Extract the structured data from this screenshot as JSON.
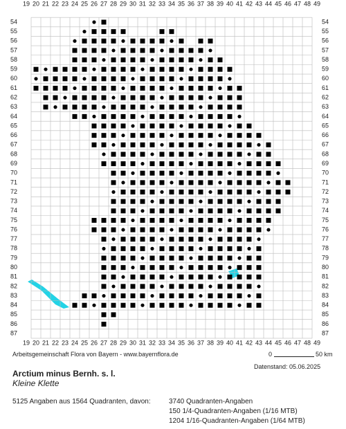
{
  "map": {
    "columns": [
      19,
      20,
      21,
      22,
      23,
      24,
      25,
      26,
      27,
      28,
      29,
      30,
      31,
      32,
      33,
      34,
      35,
      36,
      37,
      38,
      39,
      40,
      41,
      42,
      43,
      44,
      45,
      46,
      47,
      48,
      49
    ],
    "rows": [
      54,
      55,
      56,
      57,
      58,
      59,
      60,
      61,
      62,
      63,
      64,
      65,
      66,
      67,
      68,
      69,
      70,
      71,
      72,
      73,
      74,
      75,
      76,
      77,
      78,
      79,
      80,
      81,
      82,
      83,
      84,
      85,
      86,
      87
    ],
    "cells": [
      [
        54,
        26,
        27
      ],
      [
        55,
        25,
        29
      ],
      [
        55,
        33,
        34
      ],
      [
        56,
        24,
        35
      ],
      [
        56,
        37,
        38
      ],
      [
        57,
        24,
        38
      ],
      [
        58,
        24,
        39
      ],
      [
        59,
        20,
        40
      ],
      [
        60,
        20,
        40
      ],
      [
        61,
        20,
        41
      ],
      [
        62,
        21,
        41
      ],
      [
        63,
        21,
        41
      ],
      [
        64,
        24,
        41
      ],
      [
        65,
        26,
        42
      ],
      [
        66,
        26,
        43
      ],
      [
        67,
        26,
        44
      ],
      [
        68,
        27,
        44
      ],
      [
        69,
        27,
        45
      ],
      [
        70,
        28,
        45
      ],
      [
        71,
        28,
        46
      ],
      [
        72,
        28,
        46
      ],
      [
        73,
        28,
        45
      ],
      [
        74,
        28,
        45
      ],
      [
        75,
        26,
        44
      ],
      [
        76,
        26,
        44
      ],
      [
        77,
        27,
        43
      ],
      [
        78,
        27,
        43
      ],
      [
        79,
        27,
        43
      ],
      [
        80,
        27,
        43
      ],
      [
        81,
        27,
        43
      ],
      [
        82,
        27,
        43
      ],
      [
        83,
        25,
        43
      ],
      [
        84,
        24,
        43
      ],
      [
        85,
        27,
        28
      ],
      [
        86,
        27,
        27
      ]
    ],
    "credit": "Arbeitsgemeinschaft Flora von Bayern - www.bayernflora.de",
    "scale_start": "0",
    "scale_end": "50 km",
    "date": "Datenstand: 05.06.2025"
  },
  "species": {
    "name": "Arctium minus Bernh. s. l.",
    "common_name": "Kleine Klette"
  },
  "stats": {
    "summary": "5125 Angaben aus 1564 Quadranten, davon:",
    "lines": [
      "3740 Quadranten-Angaben",
      "150 1/4-Quadranten-Angaben (1/16 MTB)",
      "1204 1/16-Quadranten-Angaben (1/64 MTB)"
    ]
  }
}
